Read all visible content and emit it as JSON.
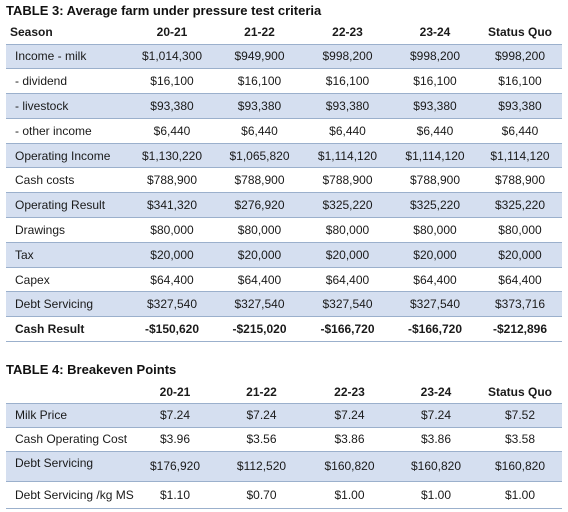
{
  "table3": {
    "title": "TABLE 3: Average farm under pressure test criteria",
    "headers": [
      "Season",
      "20-21",
      "21-22",
      "22-23",
      "23-24",
      "Status Quo"
    ],
    "rows": [
      {
        "label": "Income - milk",
        "values": [
          "$1,014,300",
          "$949,900",
          "$998,200",
          "$998,200",
          "$998,200"
        ]
      },
      {
        "label": "- dividend",
        "values": [
          "$16,100",
          "$16,100",
          "$16,100",
          "$16,100",
          "$16,100"
        ]
      },
      {
        "label": "- livestock",
        "values": [
          "$93,380",
          "$93,380",
          "$93,380",
          "$93,380",
          "$93,380"
        ]
      },
      {
        "label": "- other income",
        "values": [
          "$6,440",
          "$6,440",
          "$6,440",
          "$6,440",
          "$6,440"
        ]
      },
      {
        "label": "Operating Income",
        "values": [
          "$1,130,220",
          "$1,065,820",
          "$1,114,120",
          "$1,114,120",
          "$1,114,120"
        ]
      },
      {
        "label": "Cash costs",
        "values": [
          "$788,900",
          "$788,900",
          "$788,900",
          "$788,900",
          "$788,900"
        ]
      },
      {
        "label": "Operating Result",
        "values": [
          "$341,320",
          "$276,920",
          "$325,220",
          "$325,220",
          "$325,220"
        ]
      },
      {
        "label": "Drawings",
        "values": [
          "$80,000",
          "$80,000",
          "$80,000",
          "$80,000",
          "$80,000"
        ]
      },
      {
        "label": "Tax",
        "values": [
          "$20,000",
          "$20,000",
          "$20,000",
          "$20,000",
          "$20,000"
        ]
      },
      {
        "label": "Capex",
        "values": [
          "$64,400",
          "$64,400",
          "$64,400",
          "$64,400",
          "$64,400"
        ]
      },
      {
        "label": "Debt Servicing",
        "values": [
          "$327,540",
          "$327,540",
          "$327,540",
          "$327,540",
          "$373,716"
        ]
      },
      {
        "label": "Cash Result",
        "values": [
          "-$150,620",
          "-$215,020",
          "-$166,720",
          "-$166,720",
          "-$212,896"
        ]
      }
    ]
  },
  "table4": {
    "title": "TABLE 4: Breakeven Points",
    "headers": [
      "",
      "20-21",
      "21-22",
      "22-23",
      "23-24",
      "Status Quo"
    ],
    "rows": [
      {
        "label": "Milk Price",
        "values": [
          "$7.24",
          "$7.24",
          "$7.24",
          "$7.24",
          "$7.52"
        ]
      },
      {
        "label": "Cash Operating Cost",
        "values": [
          "$3.96",
          "$3.56",
          "$3.86",
          "$3.86",
          "$3.58"
        ]
      },
      {
        "label": "Debt Servicing",
        "values": [
          "$176,920",
          "$112,520",
          "$160,820",
          "$160,820",
          "$160,820"
        ]
      },
      {
        "label": "Debt Servicing /kg MS",
        "values": [
          "$1.10",
          "$0.70",
          "$1.00",
          "$1.00",
          "$1.00"
        ]
      }
    ]
  },
  "colors": {
    "band": "#d5dff0",
    "rule": "#9bb0cc"
  }
}
